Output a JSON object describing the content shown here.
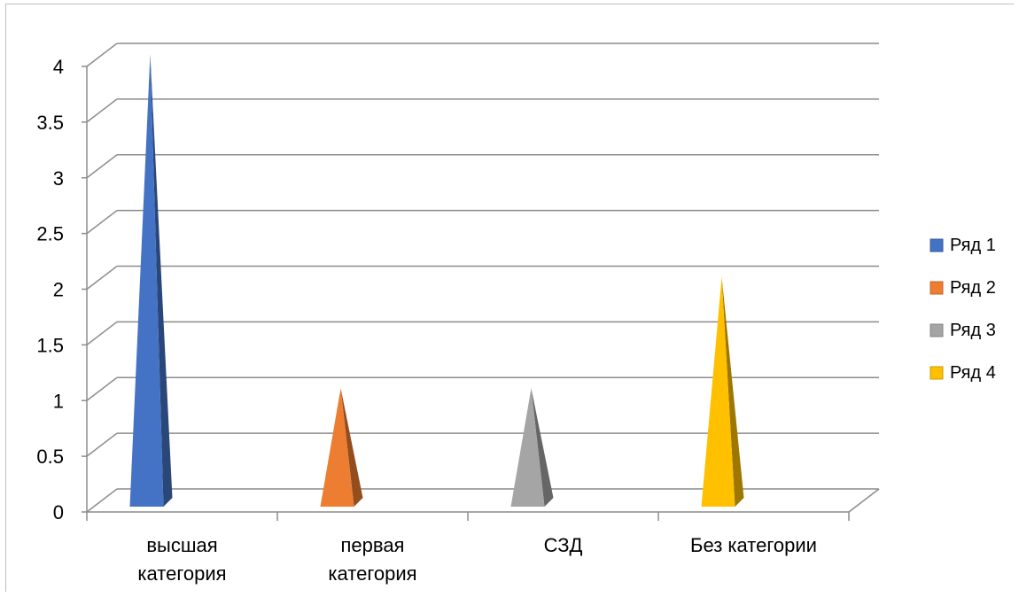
{
  "chart_data": {
    "type": "bar",
    "bar_shape": "pyramid-3d",
    "categories": [
      [
        "высшая",
        "категория"
      ],
      [
        "первая",
        "категория"
      ],
      [
        "СЗД"
      ],
      [
        "Без категории"
      ]
    ],
    "series": [
      {
        "name": "Ряд 1",
        "values": [
          4,
          0,
          0,
          0
        ],
        "color": "#4472C4"
      },
      {
        "name": "Ряд 2",
        "values": [
          0,
          1,
          0,
          0
        ],
        "color": "#ED7D31"
      },
      {
        "name": "Ряд 3",
        "values": [
          0,
          0,
          1,
          0
        ],
        "color": "#A5A5A5"
      },
      {
        "name": "Ряд 4",
        "values": [
          0,
          0,
          0,
          2
        ],
        "color": "#FFC000"
      }
    ],
    "y_ticks": [
      "0",
      "0.5",
      "1",
      "1.5",
      "2",
      "2.5",
      "3",
      "3.5",
      "4"
    ],
    "ylim": [
      0,
      4
    ],
    "grid": true,
    "legend_position": "right"
  }
}
